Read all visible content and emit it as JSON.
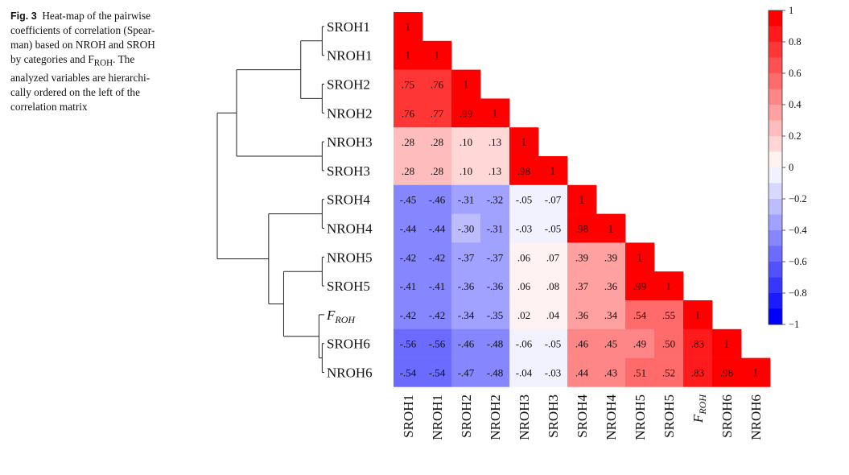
{
  "caption": {
    "figure_label": "Fig. 3",
    "lines": [
      "Heat-map of the pairwise",
      "coefficients of correlation (Spear-",
      "man) based on NROH and SROH",
      "by categories and F",
      "ROH",
      ". The",
      "analyzed variables are hierarchi-",
      "cally ordered on the left of the",
      "correlation matrix"
    ]
  },
  "chart_data": {
    "type": "heatmap",
    "subtype": "lower-triangular correlation matrix",
    "method": "Spearman",
    "labels": [
      "SROH1",
      "NROH1",
      "SROH2",
      "NROH2",
      "NROH3",
      "SROH3",
      "SROH4",
      "NROH4",
      "NROH5",
      "SROH5",
      "FROH",
      "SROH6",
      "NROH6"
    ],
    "label_parts": [
      {
        "main": "SROH1",
        "sub": ""
      },
      {
        "main": "NROH1",
        "sub": ""
      },
      {
        "main": "SROH2",
        "sub": ""
      },
      {
        "main": "NROH2",
        "sub": ""
      },
      {
        "main": "NROH3",
        "sub": ""
      },
      {
        "main": "SROH3",
        "sub": ""
      },
      {
        "main": "SROH4",
        "sub": ""
      },
      {
        "main": "NROH4",
        "sub": ""
      },
      {
        "main": "NROH5",
        "sub": ""
      },
      {
        "main": "SROH5",
        "sub": ""
      },
      {
        "main": "F",
        "sub": "ROH"
      },
      {
        "main": "SROH6",
        "sub": ""
      },
      {
        "main": "NROH6",
        "sub": ""
      }
    ],
    "values": [
      [
        1
      ],
      [
        1,
        1
      ],
      [
        0.75,
        0.76,
        1
      ],
      [
        0.76,
        0.77,
        0.99,
        1
      ],
      [
        0.28,
        0.28,
        0.1,
        0.13,
        1
      ],
      [
        0.28,
        0.28,
        0.1,
        0.13,
        0.98,
        1
      ],
      [
        -0.45,
        -0.46,
        -0.31,
        -0.32,
        -0.05,
        -0.07,
        1
      ],
      [
        -0.44,
        -0.44,
        -0.3,
        -0.31,
        -0.03,
        -0.05,
        0.98,
        1
      ],
      [
        -0.42,
        -0.42,
        -0.37,
        -0.37,
        0.06,
        0.07,
        0.39,
        0.39,
        1
      ],
      [
        -0.41,
        -0.41,
        -0.36,
        -0.36,
        0.06,
        0.08,
        0.37,
        0.36,
        0.99,
        1
      ],
      [
        -0.42,
        -0.42,
        -0.34,
        -0.35,
        0.02,
        0.04,
        0.36,
        0.34,
        0.54,
        0.55,
        1
      ],
      [
        -0.56,
        -0.56,
        -0.46,
        -0.48,
        -0.06,
        -0.05,
        0.46,
        0.45,
        0.49,
        0.5,
        0.83,
        1
      ],
      [
        -0.54,
        -0.54,
        -0.47,
        -0.48,
        -0.04,
        -0.03,
        0.44,
        0.43,
        0.51,
        0.52,
        0.83,
        0.98,
        1
      ]
    ],
    "value_labels": [
      [
        "1"
      ],
      [
        "1",
        "1"
      ],
      [
        ".75",
        ".76",
        "1"
      ],
      [
        ".76",
        ".77",
        ".99",
        "1"
      ],
      [
        ".28",
        ".28",
        ".10",
        ".13",
        "1"
      ],
      [
        ".28",
        ".28",
        ".10",
        ".13",
        ".98",
        "1"
      ],
      [
        "-.45",
        "-.46",
        "-.31",
        "-.32",
        "-.05",
        "-.07",
        "1"
      ],
      [
        "-.44",
        "-.44",
        "-.30",
        "-.31",
        "-.03",
        "-.05",
        ".98",
        "1"
      ],
      [
        "-.42",
        "-.42",
        "-.37",
        "-.37",
        ".06",
        ".07",
        ".39",
        ".39",
        "1"
      ],
      [
        "-.41",
        "-.41",
        "-.36",
        "-.36",
        ".06",
        ".08",
        ".37",
        ".36",
        ".99",
        "1"
      ],
      [
        "-.42",
        "-.42",
        "-.34",
        "-.35",
        ".02",
        ".04",
        ".36",
        ".34",
        ".54",
        ".55",
        "1"
      ],
      [
        "-.56",
        "-.56",
        "-.46",
        "-.48",
        "-.06",
        "-.05",
        ".46",
        ".45",
        ".49",
        ".50",
        ".83",
        "1"
      ],
      [
        "-.54",
        "-.54",
        "-.47",
        "-.48",
        "-.04",
        "-.03",
        ".44",
        ".43",
        ".51",
        ".52",
        ".83",
        ".98",
        "1"
      ]
    ],
    "colorbar": {
      "range": [
        -1,
        1
      ],
      "steps": 20,
      "ticks": [
        1,
        0.8,
        0.6,
        0.4,
        0.2,
        0,
        -0.2,
        -0.4,
        -0.6,
        -0.8,
        -1
      ],
      "tick_labels": [
        "1",
        "0.8",
        "0.6",
        "0.4",
        "0.2",
        "0",
        "−0.2",
        "−0.4",
        "−0.6",
        "−0.8",
        "−1"
      ],
      "neg_color": "#0000ff",
      "mid_color": "#ffffff",
      "pos_color": "#ff0000"
    },
    "dendrogram": {
      "merges": [
        {
          "a": 0,
          "b": 1,
          "height": 0.02
        },
        {
          "a": 2,
          "b": 3,
          "height": 0.02
        },
        {
          "a": 4,
          "b": 5,
          "height": 0.02
        },
        {
          "a": 6,
          "b": 7,
          "height": 0.02
        },
        {
          "a": 8,
          "b": 9,
          "height": 0.02
        },
        {
          "a": 11,
          "b": 12,
          "height": 0.02
        },
        {
          "a": 10,
          "b": "c(11,12)",
          "height": 0.05
        },
        {
          "a": "c(0,1)",
          "b": "c(2,3)",
          "height": 0.22
        },
        {
          "a": "c(8,9)",
          "b": "c(10,11,12)",
          "height": 0.38
        },
        {
          "a": "c(6,7)",
          "b": "c(8..12)",
          "height": 0.52
        },
        {
          "a": "c(0..3)",
          "b": "c(4,5)",
          "height": 0.82
        },
        {
          "a": "c(0..5)",
          "b": "c(6..12)",
          "height": 1.0
        }
      ]
    }
  }
}
